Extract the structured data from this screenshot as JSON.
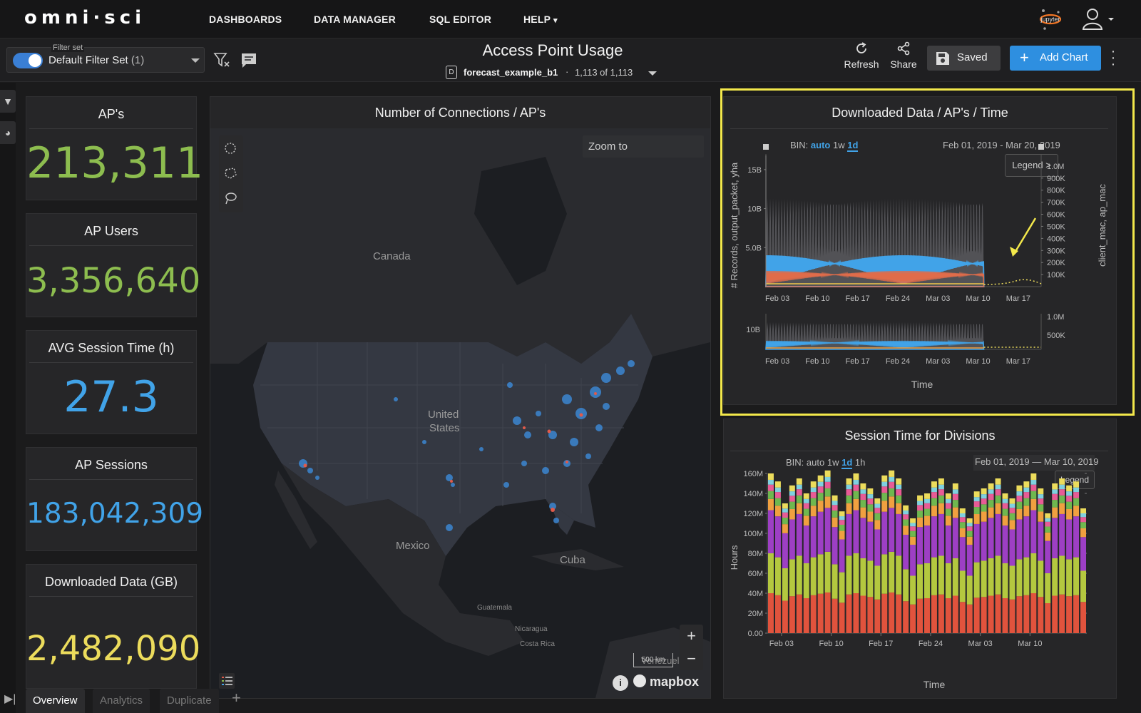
{
  "nav": {
    "logo": "omni·sci",
    "items": [
      "DASHBOARDS",
      "DATA MANAGER",
      "SQL EDITOR",
      "HELP"
    ],
    "help_caret": "▾",
    "jupyter_label": "jupyter",
    "user_icon": "user-icon"
  },
  "toolbar": {
    "filter_caption": "Filter set",
    "filter_name": "Default Filter Set",
    "filter_count": "(1)",
    "dashboard_title": "Access Point Usage",
    "datasource_icon": "D",
    "datasource_name": "forecast_example_b1",
    "datasource_sep": "·",
    "datasource_count": "1,113 of 1,113",
    "refresh_label": "Refresh",
    "share_label": "Share",
    "saved_label": "Saved",
    "add_chart_label": "Add Chart"
  },
  "kpis": [
    {
      "title": "AP's",
      "value": "213,311",
      "color": "#8dbd4f"
    },
    {
      "title": "AP Users",
      "value": "3,356,640",
      "color": "#8dbd4f"
    },
    {
      "title": "AVG Session Time (h)",
      "value": "27.3",
      "color": "#41a3e8"
    },
    {
      "title": "AP Sessions",
      "value": "183,042,309",
      "color": "#41a3e8"
    },
    {
      "title": "Downloaded Data (GB)",
      "value": "2,482,090",
      "color": "#ecdc5c"
    }
  ],
  "map": {
    "title": "Number of Connections / AP's",
    "zoom_placeholder": "Zoom to",
    "labels": [
      "Canada",
      "United",
      "States",
      "Mexico",
      "Cuba",
      "Guatemala",
      "Nicaragua",
      "Costa Rica",
      "Venezuela"
    ],
    "scale": "500 km",
    "attribution": "mapbox",
    "zoom_in": "+",
    "zoom_out": "−"
  },
  "chart1": {
    "title": "Downloaded Data / AP's / Time",
    "bin_label": "BIN:",
    "bins": [
      "auto",
      "1w",
      "1d"
    ],
    "active_bin": "1d",
    "date_range": "Feb 01, 2019 - Mar 20, 2019",
    "legend_btn": "Legend >",
    "y_left_label": "# Records, output_packet, yha",
    "y_right_label": "client_mac, ap_mac",
    "x_label": "Time"
  },
  "chart2": {
    "title": "Session Time for Divisions",
    "bin_label": "BIN:",
    "bins": [
      "auto",
      "1w",
      "1d",
      "1h"
    ],
    "active_bin": "1d",
    "date_from": "Feb 01, 2019",
    "date_dash": "—",
    "date_to": "Mar 10, 2019",
    "legend_btn": "Legend",
    "y_label": "Hours",
    "x_label": "Time"
  },
  "chart_data": [
    {
      "type": "area",
      "title": "Downloaded Data / AP's / Time",
      "xlabel": "Time",
      "ylabel": "# Records, output_packet, yha",
      "y2label": "client_mac, ap_mac",
      "x_ticks": [
        "Feb 03",
        "Feb 10",
        "Feb 17",
        "Feb 24",
        "Mar 03",
        "Mar 10",
        "Mar 17"
      ],
      "y_ticks": [
        "5.0B",
        "10B",
        "15B"
      ],
      "y2_ticks": [
        "100K",
        "200K",
        "300K",
        "400K",
        "500K",
        "600K",
        "700K",
        "800K",
        "900K",
        "1.0M"
      ],
      "ylim": [
        0,
        17000000000
      ],
      "y2lim": [
        0,
        1100000
      ],
      "brush_y_ticks": [
        "10B"
      ],
      "brush_y2_ticks": [
        "500K",
        "1.0M"
      ],
      "series_colors": [
        "#6b6b6f",
        "#41a3e8",
        "#e06c4a",
        "#f0c74a",
        "#ecdc5c"
      ]
    },
    {
      "type": "bar",
      "title": "Session Time for Divisions",
      "xlabel": "Time",
      "ylabel": "Hours",
      "x_ticks": [
        "Feb 03",
        "Feb 10",
        "Feb 17",
        "Feb 24",
        "Mar 03",
        "Mar 10"
      ],
      "y_ticks": [
        "0.00",
        "20M",
        "40M",
        "60M",
        "80M",
        "100M",
        "120M",
        "140M",
        "160M"
      ],
      "ylim": [
        0,
        160000000
      ],
      "stacked": true,
      "n_bars": 45,
      "series_colors": [
        "#e1533d",
        "#b4c83f",
        "#9d3fc4",
        "#f0a040",
        "#6fb84f",
        "#e85b96",
        "#7fd1e0",
        "#ecdc5c"
      ],
      "totals_millions": [
        160,
        152,
        130,
        148,
        155,
        140,
        152,
        158,
        163,
        138,
        122,
        155,
        160,
        150,
        145,
        135,
        158,
        163,
        155,
        128,
        115,
        138,
        140,
        152,
        155,
        140,
        150,
        125,
        115,
        142,
        145,
        150,
        155,
        140,
        135,
        148,
        152,
        160,
        145,
        120,
        150,
        155,
        148,
        152,
        125
      ]
    }
  ],
  "tabs": [
    "Overview",
    "Analytics",
    "Duplicate"
  ],
  "tabs_add": "+"
}
